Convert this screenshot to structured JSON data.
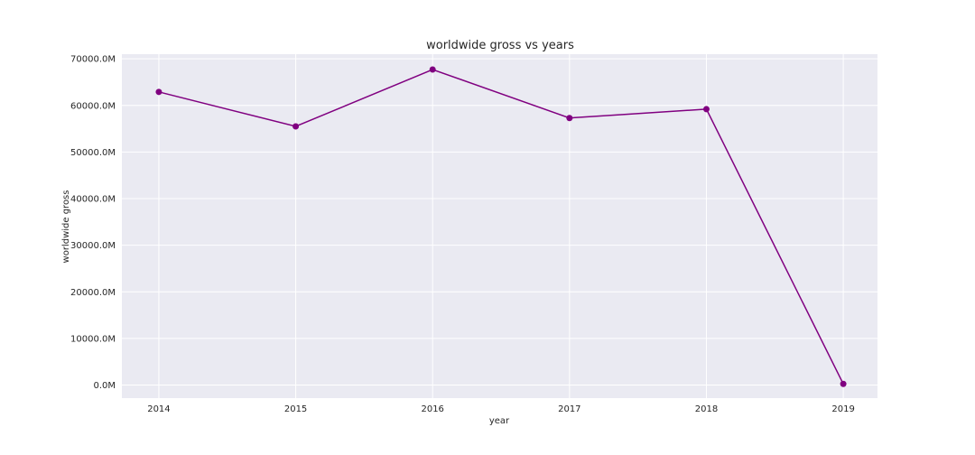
{
  "chart_data": {
    "type": "line",
    "title": "worldwide gross vs years",
    "xlabel": "year",
    "ylabel": "worldwide gross",
    "x": [
      2014,
      2015,
      2016,
      2017,
      2018,
      2019
    ],
    "x_tick_labels": [
      "2014",
      "2015",
      "2016",
      "2017",
      "2018",
      "2019"
    ],
    "y_tick_values": [
      0,
      10000,
      20000,
      30000,
      40000,
      50000,
      60000,
      70000
    ],
    "y_tick_labels": [
      "0.0M",
      "10000.0M",
      "20000.0M",
      "30000.0M",
      "40000.0M",
      "50000.0M",
      "60000.0M",
      "70000.0M"
    ],
    "series": [
      {
        "values": [
          62900,
          55500,
          67700,
          57300,
          59200,
          250
        ]
      }
    ],
    "y_unit": "M",
    "xlim": [
      2013.73,
      2019.25
    ],
    "ylim": [
      -2800,
      71000
    ],
    "grid": true,
    "marker": "circle",
    "colors": {
      "line": "#800080",
      "plot_background": "#eaeaf2",
      "grid": "#ffffff"
    }
  }
}
